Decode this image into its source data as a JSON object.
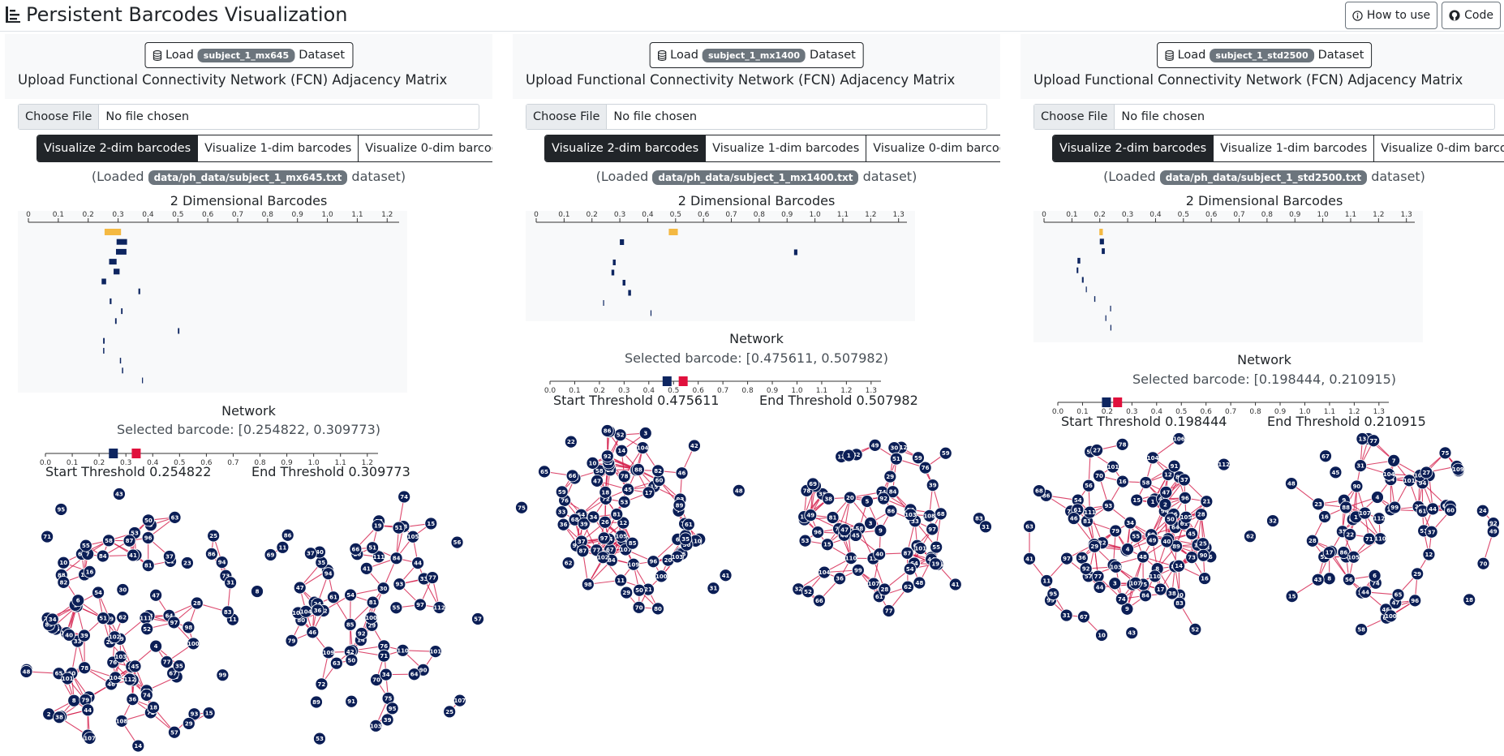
{
  "app": {
    "title": "Persistent Barcodes Visualization",
    "how_to_use": "How to use",
    "code": "Code"
  },
  "common": {
    "load_label": "Load",
    "dataset_label": "Dataset",
    "upload_title": "Upload Functional Connectivity Network (FCN) Adjacency Matrix",
    "choose_file": "Choose File",
    "no_file": "No file chosen",
    "vis_2": "Visualize 2-dim barcodes",
    "vis_1": "Visualize 1-dim barcodes",
    "vis_0": "Visualize 0-dim barcodes",
    "loaded_prefix": "(Loaded",
    "loaded_suffix": "dataset)",
    "barcodes_title": "2 Dimensional Barcodes",
    "network_title": "Network",
    "selected_prefix": "Selected barcode:",
    "start_prefix": "Start Threshold",
    "end_prefix": "End Threshold",
    "icon_names": [
      "list-icon",
      "info-icon",
      "github-icon",
      "database-icon"
    ],
    "colors": {
      "bar_selected": "#f4b942",
      "bar": "#0d2560",
      "edge": "#d31a48",
      "node": "#0b1e56"
    }
  },
  "panels": [
    {
      "dataset": "subject_1_mx645",
      "loaded_path": "data/ph_data/subject_1_mx645.txt",
      "selected": "[0.254822, 0.309773)",
      "start_value": "0.254822",
      "end_value": "0.309773",
      "axis_ticks": [
        "0",
        "0.1",
        "0.2",
        "0.3",
        "0.4",
        "0.5",
        "0.6",
        "0.7",
        "0.8",
        "0.9",
        "1.0",
        "1.1",
        "1.2"
      ],
      "axis_max": 1.24,
      "slider_ticks": [
        "0.0",
        "0.1",
        "0.2",
        "0.3",
        "0.4",
        "0.5",
        "0.6",
        "0.7",
        "0.8",
        "0.9",
        "1.0",
        "1.1",
        "1.2"
      ],
      "slider_max": 1.24,
      "barcodes": [
        [
          0.254822,
          0.309773
        ],
        [
          0.295,
          0.33
        ],
        [
          0.293,
          0.328
        ],
        [
          0.27,
          0.295
        ],
        [
          0.285,
          0.305
        ],
        [
          0.245,
          0.26
        ],
        [
          0.368,
          0.374
        ],
        [
          0.272,
          0.278
        ],
        [
          0.31,
          0.315
        ],
        [
          0.29,
          0.295
        ],
        [
          0.5,
          0.505
        ],
        [
          0.25,
          0.255
        ],
        [
          0.25,
          0.254
        ],
        [
          0.306,
          0.31
        ],
        [
          0.313,
          0.317
        ],
        [
          0.38,
          0.383
        ]
      ],
      "nodes_a": [
        "25",
        "99",
        "86",
        "2",
        "71",
        "15",
        "12",
        "5",
        "69",
        "72",
        "74",
        "58",
        "57",
        "11",
        "10",
        "78",
        "75",
        "24",
        "4",
        "3",
        "96",
        "22",
        "76",
        "61",
        "23",
        "19",
        "73",
        "1",
        "43",
        "68",
        "7",
        "18",
        "83",
        "26",
        "77",
        "14",
        "42",
        "30",
        "31",
        "59",
        "8",
        "60",
        "21",
        "80",
        "63",
        "93",
        "6",
        "9",
        "20",
        "13",
        "16",
        "81",
        "55",
        "85",
        "41",
        "94",
        "17",
        "33",
        "62",
        "65",
        "67",
        "29",
        "28",
        "64",
        "54",
        "108",
        "79",
        "46",
        "49",
        "32",
        "39",
        "98",
        "34",
        "38",
        "111",
        "50",
        "112",
        "84",
        "88",
        "44",
        "102",
        "35",
        "47",
        "103",
        "82",
        "36",
        "95",
        "104",
        "51",
        "53",
        "105",
        "52",
        "37",
        "101",
        "100",
        "45",
        "107",
        "87",
        "97",
        "48",
        "40"
      ],
      "nodes_b": [
        "25",
        "86",
        "56",
        "57",
        "11",
        "74",
        "72",
        "33",
        "15",
        "69",
        "10",
        "76",
        "58",
        "93",
        "44",
        "75",
        "70",
        "63",
        "29",
        "19",
        "30",
        "26",
        "81",
        "24",
        "14",
        "61",
        "66",
        "71",
        "53",
        "59",
        "79",
        "91",
        "80",
        "108",
        "41",
        "94",
        "8",
        "77",
        "39",
        "111",
        "90",
        "32",
        "104",
        "85",
        "88",
        "112",
        "28",
        "42",
        "109",
        "55",
        "89",
        "110",
        "36",
        "107",
        "103",
        "50",
        "51",
        "64",
        "35",
        "51",
        "97",
        "54",
        "95",
        "101",
        "40",
        "92",
        "37",
        "105",
        "46",
        "100",
        "47",
        "84",
        "34"
      ]
    },
    {
      "dataset": "subject_1_mx1400",
      "loaded_path": "data/ph_data/subject_1_mx1400.txt",
      "selected": "[0.475611, 0.507982)",
      "start_value": "0.475611",
      "end_value": "0.507982",
      "axis_ticks": [
        "0",
        "0.1",
        "0.2",
        "0.3",
        "0.4",
        "0.5",
        "0.6",
        "0.7",
        "0.8",
        "0.9",
        "1.0",
        "1.1",
        "1.2",
        "1.3"
      ],
      "axis_max": 1.33,
      "slider_ticks": [
        "0.0",
        "0.1",
        "0.2",
        "0.3",
        "0.4",
        "0.5",
        "0.6",
        "0.7",
        "0.8",
        "0.9",
        "1.0",
        "1.1",
        "1.2",
        "1.3"
      ],
      "slider_max": 1.34,
      "barcodes": [
        [
          0.475611,
          0.507982
        ],
        [
          0.3,
          0.315
        ],
        [
          0.925,
          0.937
        ],
        [
          0.275,
          0.285
        ],
        [
          0.27,
          0.28
        ],
        [
          0.31,
          0.32
        ],
        [
          0.33,
          0.34
        ],
        [
          0.24,
          0.243
        ],
        [
          0.41,
          0.413
        ]
      ],
      "nodes_a": [
        "31",
        "52",
        "70",
        "3",
        "75",
        "80",
        "72",
        "15",
        "74",
        "12",
        "23",
        "62",
        "9",
        "73",
        "78",
        "19",
        "6",
        "54",
        "77",
        "57",
        "95",
        "58",
        "67",
        "76",
        "10",
        "56",
        "11",
        "18",
        "59",
        "26",
        "17",
        "61",
        "91",
        "33",
        "25",
        "5",
        "93",
        "60",
        "68",
        "84",
        "45",
        "20",
        "48",
        "65",
        "39",
        "110",
        "55",
        "82",
        "46",
        "29",
        "64",
        "53",
        "81",
        "37",
        "14",
        "42",
        "21",
        "109",
        "102",
        "7",
        "36",
        "98",
        "89",
        "51",
        "30",
        "97",
        "100",
        "71",
        "66",
        "103",
        "108",
        "104",
        "88",
        "41",
        "96",
        "87",
        "50",
        "35",
        "107",
        "105",
        "22",
        "47",
        "92",
        "85",
        "86",
        "34"
      ],
      "nodes_b": [
        "83",
        "31",
        "32",
        "59",
        "52",
        "77",
        "35",
        "49",
        "9",
        "13",
        "3",
        "63",
        "12",
        "23",
        "61",
        "55",
        "96",
        "76",
        "5",
        "66",
        "28",
        "74",
        "58",
        "78",
        "20",
        "33",
        "64",
        "15",
        "99",
        "62",
        "70",
        "69",
        "14",
        "68",
        "44",
        "42",
        "40",
        "65",
        "1",
        "53",
        "112",
        "54",
        "86",
        "34",
        "110",
        "59",
        "25",
        "81",
        "16",
        "84",
        "39",
        "48",
        "103",
        "30",
        "97",
        "101",
        "45",
        "104",
        "46",
        "108",
        "47",
        "107",
        "29",
        "49",
        "92",
        "106",
        "51",
        "36",
        "41",
        "38",
        "19",
        "87"
      ]
    },
    {
      "dataset": "subject_1_std2500",
      "loaded_path": "data/ph_data/subject_1_std2500.txt",
      "selected": "[0.198444, 0.210915)",
      "start_value": "0.198444",
      "end_value": "0.210915",
      "axis_ticks": [
        "0",
        "0.1",
        "0.2",
        "0.3",
        "0.4",
        "0.5",
        "0.6",
        "0.7",
        "0.8",
        "0.9",
        "1.0",
        "1.1",
        "1.2",
        "1.3"
      ],
      "axis_max": 1.33,
      "slider_ticks": [
        "0.0",
        "0.1",
        "0.2",
        "0.3",
        "0.4",
        "0.5",
        "0.6",
        "0.7",
        "0.8",
        "0.9",
        "1.0",
        "1.1",
        "1.2",
        "1.3"
      ],
      "slider_max": 1.34,
      "barcodes": [
        [
          0.198444,
          0.210915
        ],
        [
          0.2,
          0.215
        ],
        [
          0.207,
          0.218
        ],
        [
          0.12,
          0.13
        ],
        [
          0.117,
          0.123
        ],
        [
          0.136,
          0.142
        ],
        [
          0.15,
          0.153
        ],
        [
          0.18,
          0.184
        ],
        [
          0.237,
          0.24
        ],
        [
          0.22,
          0.223
        ],
        [
          0.238,
          0.241
        ]
      ],
      "nodes_a": [
        "31",
        "99",
        "86",
        "52",
        "11",
        "10",
        "6",
        "54",
        "67",
        "15",
        "17",
        "82",
        "5",
        "18",
        "88",
        "59",
        "3",
        "12",
        "16",
        "48",
        "26",
        "1",
        "95",
        "97",
        "57",
        "70",
        "56",
        "78",
        "65",
        "24",
        "23",
        "42",
        "94",
        "71",
        "9",
        "22",
        "61",
        "28",
        "73",
        "74",
        "14",
        "2",
        "25",
        "69",
        "80",
        "64",
        "91",
        "8",
        "77",
        "66",
        "83",
        "46",
        "102",
        "4",
        "53",
        "58",
        "16",
        "89",
        "90",
        "63",
        "112",
        "81",
        "21",
        "36",
        "55",
        "111",
        "62",
        "84",
        "101",
        "104",
        "50",
        "79",
        "49",
        "47",
        "44",
        "40",
        "75",
        "92",
        "45",
        "103",
        "61",
        "110",
        "29",
        "48",
        "37",
        "106",
        "41",
        "107",
        "93",
        "105",
        "34",
        "38",
        "96",
        "43",
        "27",
        "68"
      ],
      "nodes_b": [
        "82",
        "15",
        "75",
        "11",
        "18",
        "67",
        "14",
        "66",
        "28",
        "69",
        "10",
        "12",
        "23",
        "74",
        "1",
        "73",
        "13",
        "56",
        "58",
        "25",
        "9",
        "3",
        "70",
        "48",
        "61",
        "50",
        "16",
        "31",
        "6",
        "77",
        "54",
        "38",
        "8",
        "52",
        "86",
        "19",
        "44",
        "64",
        "96",
        "29",
        "35",
        "7",
        "44",
        "32",
        "94",
        "112",
        "22",
        "90",
        "88",
        "4",
        "17",
        "47",
        "110",
        "71",
        "99",
        "103",
        "51",
        "107",
        "46",
        "65",
        "60",
        "109",
        "43",
        "92",
        "37",
        "27",
        "49",
        "101",
        "104",
        "100",
        "45",
        "105",
        "24"
      ]
    }
  ]
}
